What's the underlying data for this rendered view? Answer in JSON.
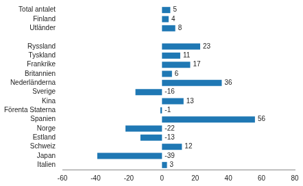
{
  "chart_data": {
    "type": "bar",
    "orientation": "horizontal",
    "categories": [
      "Total antalet",
      "Finland",
      "Utländer",
      null,
      "Ryssland",
      "Tyskland",
      "Frankrike",
      "Britannien",
      "Nederländerna",
      "Sverige",
      "Kina",
      "Förenta Staterna",
      "Spanien",
      "Norge",
      "Estland",
      "Schweiz",
      "Japan",
      "Italien"
    ],
    "values": [
      5,
      4,
      8,
      null,
      23,
      11,
      17,
      6,
      36,
      -16,
      13,
      -1,
      56,
      -22,
      -13,
      12,
      -39,
      3
    ],
    "color": "#1f78b4",
    "xlim": [
      -60,
      80
    ],
    "xticks": [
      -60,
      -40,
      -20,
      0,
      20,
      40,
      60,
      80
    ],
    "grid": false,
    "data_labels": true
  }
}
